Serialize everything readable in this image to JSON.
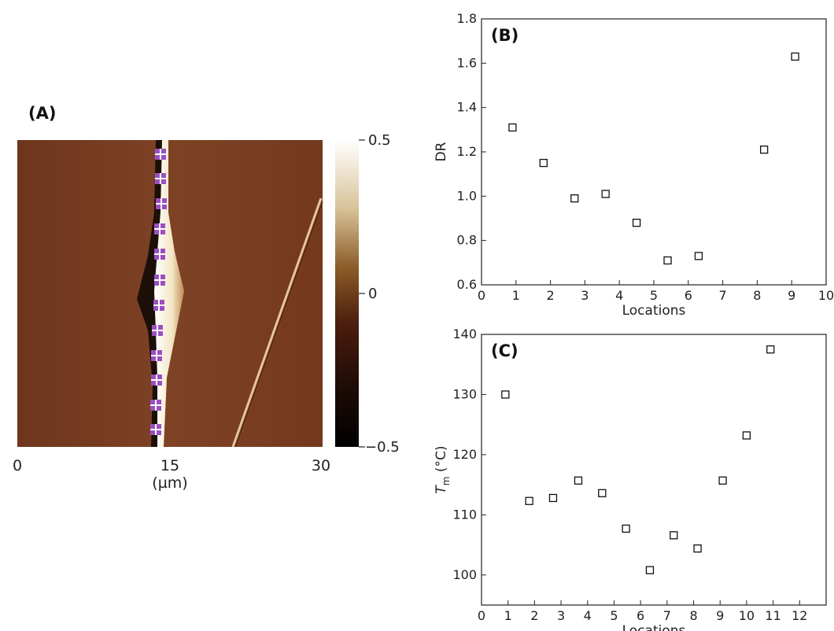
{
  "panel_a": {
    "label": "(A)",
    "x_ticks": [
      "0",
      "15",
      "30"
    ],
    "x_unit": "(µm)",
    "colorbar_ticks": [
      "0.5",
      "0",
      "−0.5"
    ],
    "colors": {
      "background": "#7a3e22",
      "dark_band": "#1c0f08",
      "bright_band": "#fbf3df",
      "marker": "#9b4fc0",
      "colorbar_top": "#ffffff",
      "colorbar_mid": "#5a2a10",
      "colorbar_bottom": "#000000"
    }
  },
  "chart_data": [
    {
      "type": "scatter",
      "label": "(B)",
      "title": "",
      "xlabel": "Locations",
      "ylabel": "DR",
      "xlim": [
        0,
        10
      ],
      "ylim": [
        0.6,
        1.8
      ],
      "x_ticks": [
        0,
        1,
        2,
        3,
        4,
        5,
        6,
        7,
        8,
        9,
        10
      ],
      "y_ticks": [
        "0.6",
        "0.8",
        "1.0",
        "1.2",
        "1.4",
        "1.6",
        "1.8"
      ],
      "x": [
        0.9,
        1.8,
        2.7,
        3.6,
        4.5,
        5.4,
        6.3,
        8.2,
        9.1
      ],
      "y": [
        1.31,
        1.15,
        0.99,
        1.01,
        0.88,
        0.71,
        0.73,
        1.21,
        1.63
      ],
      "marker": "open-square",
      "grid": false
    },
    {
      "type": "scatter",
      "label": "(C)",
      "title": "",
      "xlabel": "Locations",
      "ylabel_main": "T",
      "ylabel_sub": "m",
      "ylabel_unit": " (°C)",
      "xlim": [
        0,
        13
      ],
      "ylim": [
        95,
        140
      ],
      "x_ticks": [
        0,
        1,
        2,
        3,
        4,
        5,
        6,
        7,
        8,
        9,
        10,
        11,
        12
      ],
      "y_ticks": [
        "100",
        "110",
        "120",
        "130",
        "140"
      ],
      "x": [
        0.9,
        1.8,
        2.7,
        3.65,
        4.55,
        5.45,
        6.35,
        7.25,
        8.15,
        9.1,
        10.0,
        10.9
      ],
      "y": [
        130,
        112.3,
        112.8,
        115.7,
        113.6,
        107.7,
        100.8,
        106.6,
        104.4,
        115.7,
        123.2,
        137.5
      ],
      "marker": "open-square",
      "grid": false
    }
  ]
}
